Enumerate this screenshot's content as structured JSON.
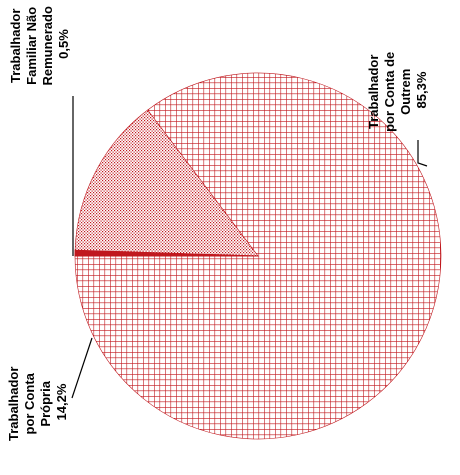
{
  "chart_data": {
    "type": "pie",
    "slices": [
      {
        "name": "Trabalhador por Conta de Outrem",
        "label_lines": [
          "Trabalhador",
          "por Conta de",
          "Outrem",
          "85,3%"
        ],
        "value": 85.3,
        "fill": "grid",
        "color": "#c0181e"
      },
      {
        "name": "Trabalhador por Conta Própria",
        "label_lines": [
          "Trabalhador",
          "por Conta",
          "Própria",
          "14,2%"
        ],
        "value": 14.2,
        "fill": "dots",
        "color": "#c0181e"
      },
      {
        "name": "Trabalhador Familiar Não Remunerado",
        "label_lines": [
          "Trabalhador",
          "Familiar Não",
          "Remunerado",
          "0,5%"
        ],
        "value": 0.5,
        "fill": "solid",
        "color": "#c0181e"
      }
    ],
    "label_orientation": "rotated-90-ccw"
  }
}
